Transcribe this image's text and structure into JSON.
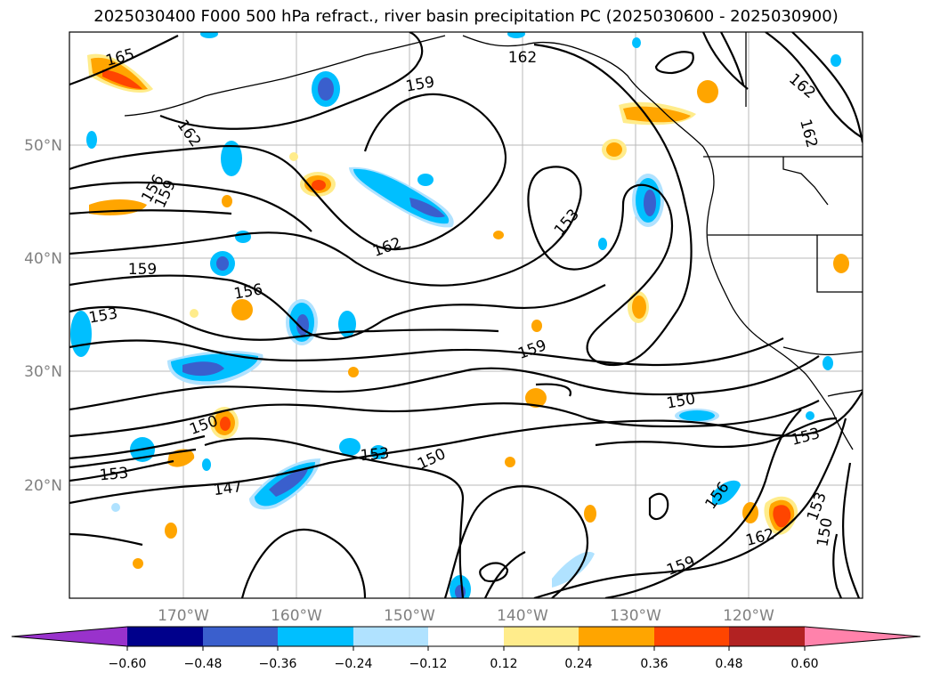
{
  "title": "2025030400 F000 500 hPa refract., river basin precipitation PC (2025030600 - 2025030900)",
  "axes": {
    "lon_ticks": [
      "170°W",
      "160°W",
      "150°W",
      "140°W",
      "130°W",
      "120°W"
    ],
    "lat_ticks": [
      "50°N",
      "40°N",
      "30°N",
      "20°N"
    ]
  },
  "colorbar": {
    "colors": [
      "#9932CC",
      "#00008B",
      "#3A5FCD",
      "#00BFFF",
      "#B0E2FF",
      "#FFFFFF",
      "#FFEC8B",
      "#FFA500",
      "#FF4500",
      "#B22222",
      "#FF82AB"
    ],
    "tick_labels": [
      "−0.60",
      "−0.48",
      "−0.36",
      "−0.24",
      "−0.12",
      "0.12",
      "0.24",
      "0.36",
      "0.48",
      "0.60"
    ]
  },
  "contour_labels": [
    {
      "text": "165",
      "rot": -15
    },
    {
      "text": "162",
      "rot": 55
    },
    {
      "text": "156",
      "rot": -60
    },
    {
      "text": "159",
      "rot": -65
    },
    {
      "text": "159",
      "rot": 0
    },
    {
      "text": "156",
      "rot": -10
    },
    {
      "text": "153",
      "rot": -10
    },
    {
      "text": "150",
      "rot": -20
    },
    {
      "text": "153",
      "rot": -5
    },
    {
      "text": "147",
      "rot": -8
    },
    {
      "text": "153",
      "rot": -5
    },
    {
      "text": "150",
      "rot": -25
    },
    {
      "text": "162",
      "rot": 0
    },
    {
      "text": "159",
      "rot": -10
    },
    {
      "text": "162",
      "rot": -20
    },
    {
      "text": "153",
      "rot": -50
    },
    {
      "text": "159",
      "rot": -20
    },
    {
      "text": "150",
      "rot": -10
    },
    {
      "text": "153",
      "rot": -15
    },
    {
      "text": "162",
      "rot": 40
    },
    {
      "text": "162",
      "rot": 75
    },
    {
      "text": "156",
      "rot": -55
    },
    {
      "text": "153",
      "rot": -70
    },
    {
      "text": "150",
      "rot": -80
    },
    {
      "text": "162",
      "rot": -15
    },
    {
      "text": "159",
      "rot": -20
    }
  ]
}
